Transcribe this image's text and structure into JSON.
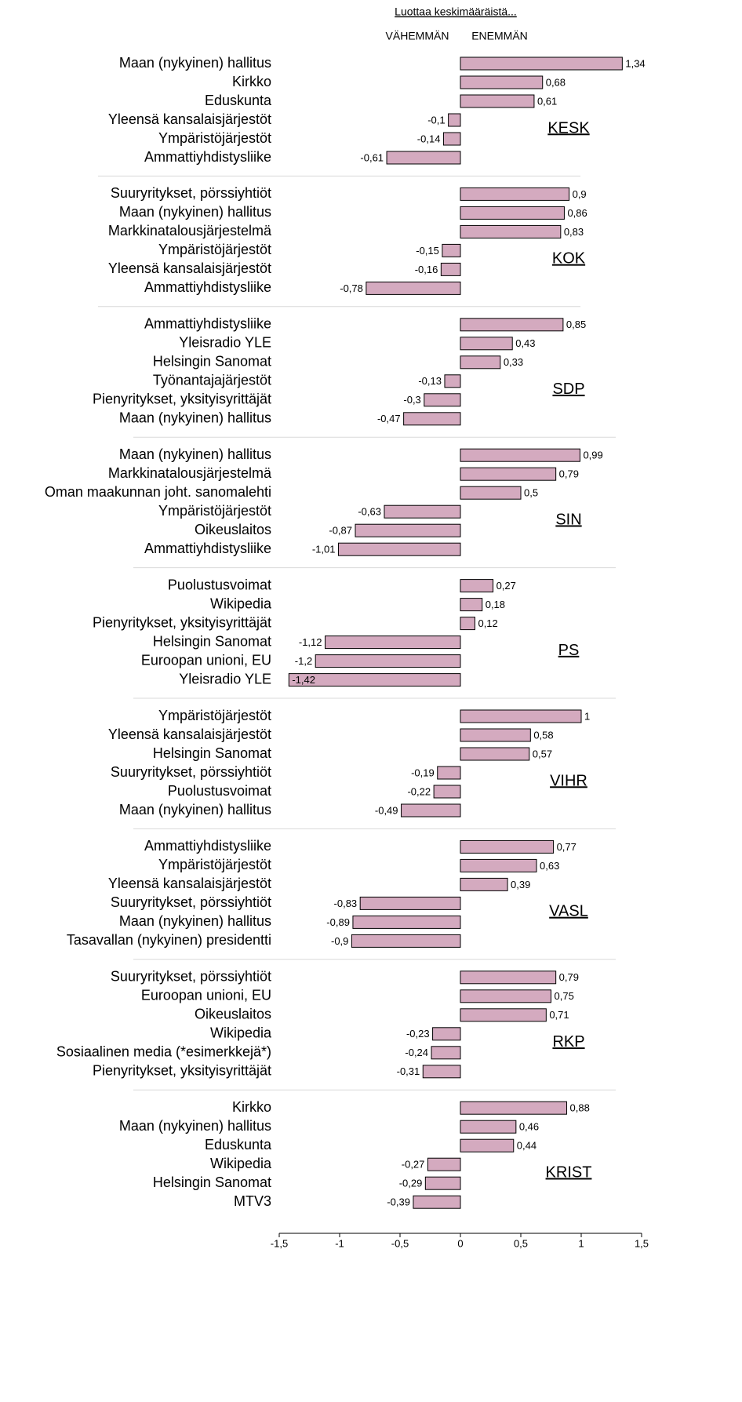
{
  "chart_data": {
    "type": "bar",
    "orientation": "horizontal",
    "color": "#d4aabf",
    "header": "Luottaa keskimääräistä...",
    "less_label": "VÄHEMMÄN",
    "more_label": "ENEMMÄN",
    "xlim": [
      -1.5,
      1.5
    ],
    "xticks": [
      {
        "value": -1.5,
        "label": "-1,5"
      },
      -1,
      {
        "value": -0.5,
        "label": "-0,5"
      },
      0,
      {
        "value": 0.5,
        "label": "0,5"
      },
      1,
      {
        "value": 1.5,
        "label": "1,5"
      }
    ],
    "groups": [
      {
        "name": "KESK",
        "categories": [
          "Maan (nykyinen) hallitus",
          "Kirkko",
          "Eduskunta",
          "Yleensä kansalaisjärjestöt",
          "Ympäristöjärjestöt",
          "Ammattiyhdistysliike"
        ],
        "values": [
          1.34,
          0.68,
          0.61,
          -0.1,
          -0.14,
          -0.61
        ],
        "value_labels": [
          "1,34",
          "0,68",
          "0,61",
          "-0,1",
          "-0,14",
          "-0,61"
        ]
      },
      {
        "name": "KOK",
        "categories": [
          "Suuryritykset, pörssiyhtiöt",
          "Maan (nykyinen) hallitus",
          "Markkinatalousjärjestelmä",
          "Ympäristöjärjestöt",
          "Yleensä kansalaisjärjestöt",
          "Ammattiyhdistysliike"
        ],
        "values": [
          0.9,
          0.86,
          0.83,
          -0.15,
          -0.16,
          -0.78
        ],
        "value_labels": [
          "0,9",
          "0,86",
          "0,83",
          "-0,15",
          "-0,16",
          "-0,78"
        ]
      },
      {
        "name": "SDP",
        "categories": [
          "Ammattiyhdistysliike",
          "Yleisradio YLE",
          "Helsingin Sanomat",
          "Työnantajajärjestöt",
          "Pienyritykset, yksityisyrittäjät",
          "Maan (nykyinen) hallitus"
        ],
        "values": [
          0.85,
          0.43,
          0.33,
          -0.13,
          -0.3,
          -0.47
        ],
        "value_labels": [
          "0,85",
          "0,43",
          "0,33",
          "-0,13",
          "-0,3",
          "-0,47"
        ]
      },
      {
        "name": "SIN",
        "categories": [
          "Maan (nykyinen) hallitus",
          "Markkinatalousjärjestelmä",
          "Oman maakunnan joht. sanomalehti",
          "Ympäristöjärjestöt",
          "Oikeuslaitos",
          "Ammattiyhdistysliike"
        ],
        "values": [
          0.99,
          0.79,
          0.5,
          -0.63,
          -0.87,
          -1.01
        ],
        "value_labels": [
          "0,99",
          "0,79",
          "0,5",
          "-0,63",
          "-0,87",
          "-1,01"
        ]
      },
      {
        "name": "PS",
        "categories": [
          "Puolustusvoimat",
          "Wikipedia",
          "Pienyritykset, yksityisyrittäjät",
          "Helsingin Sanomat",
          "Euroopan unioni, EU",
          "Yleisradio YLE"
        ],
        "values": [
          0.27,
          0.18,
          0.12,
          -1.12,
          -1.2,
          -1.42
        ],
        "value_labels": [
          "0,27",
          "0,18",
          "0,12",
          "-1,12",
          "-1,2",
          "-1,42"
        ]
      },
      {
        "name": "VIHR",
        "categories": [
          "Ympäristöjärjestöt",
          "Yleensä kansalaisjärjestöt",
          "Helsingin Sanomat",
          "Suuryritykset, pörssiyhtiöt",
          "Puolustusvoimat",
          "Maan (nykyinen) hallitus"
        ],
        "values": [
          1,
          0.58,
          0.57,
          -0.19,
          -0.22,
          -0.49
        ],
        "value_labels": [
          "1",
          "0,58",
          "0,57",
          "-0,19",
          "-0,22",
          "-0,49"
        ]
      },
      {
        "name": "VASL",
        "categories": [
          "Ammattiyhdistysliike",
          "Ympäristöjärjestöt",
          "Yleensä kansalaisjärjestöt",
          "Suuryritykset, pörssiyhtiöt",
          "Maan (nykyinen) hallitus",
          "Tasavallan (nykyinen) presidentti"
        ],
        "values": [
          0.77,
          0.63,
          0.39,
          -0.83,
          -0.89,
          -0.9
        ],
        "value_labels": [
          "0,77",
          "0,63",
          "0,39",
          "-0,83",
          "-0,89",
          "-0,9"
        ]
      },
      {
        "name": "RKP",
        "categories": [
          "Suuryritykset, pörssiyhtiöt",
          "Euroopan unioni, EU",
          "Oikeuslaitos",
          "Wikipedia",
          "Sosiaalinen media (*esimerkkejä*)",
          "Pienyritykset, yksityisyrittäjät"
        ],
        "values": [
          0.79,
          0.75,
          0.71,
          -0.23,
          -0.24,
          -0.31
        ],
        "value_labels": [
          "0,79",
          "0,75",
          "0,71",
          "-0,23",
          "-0,24",
          "-0,31"
        ]
      },
      {
        "name": "KRIST",
        "categories": [
          "Kirkko",
          "Maan (nykyinen) hallitus",
          "Eduskunta",
          "Wikipedia",
          "Helsingin Sanomat",
          "MTV3"
        ],
        "values": [
          0.88,
          0.46,
          0.44,
          -0.27,
          -0.29,
          -0.39
        ],
        "value_labels": [
          "0,88",
          "0,46",
          "0,44",
          "-0,27",
          "-0,29",
          "-0,39"
        ]
      }
    ]
  }
}
